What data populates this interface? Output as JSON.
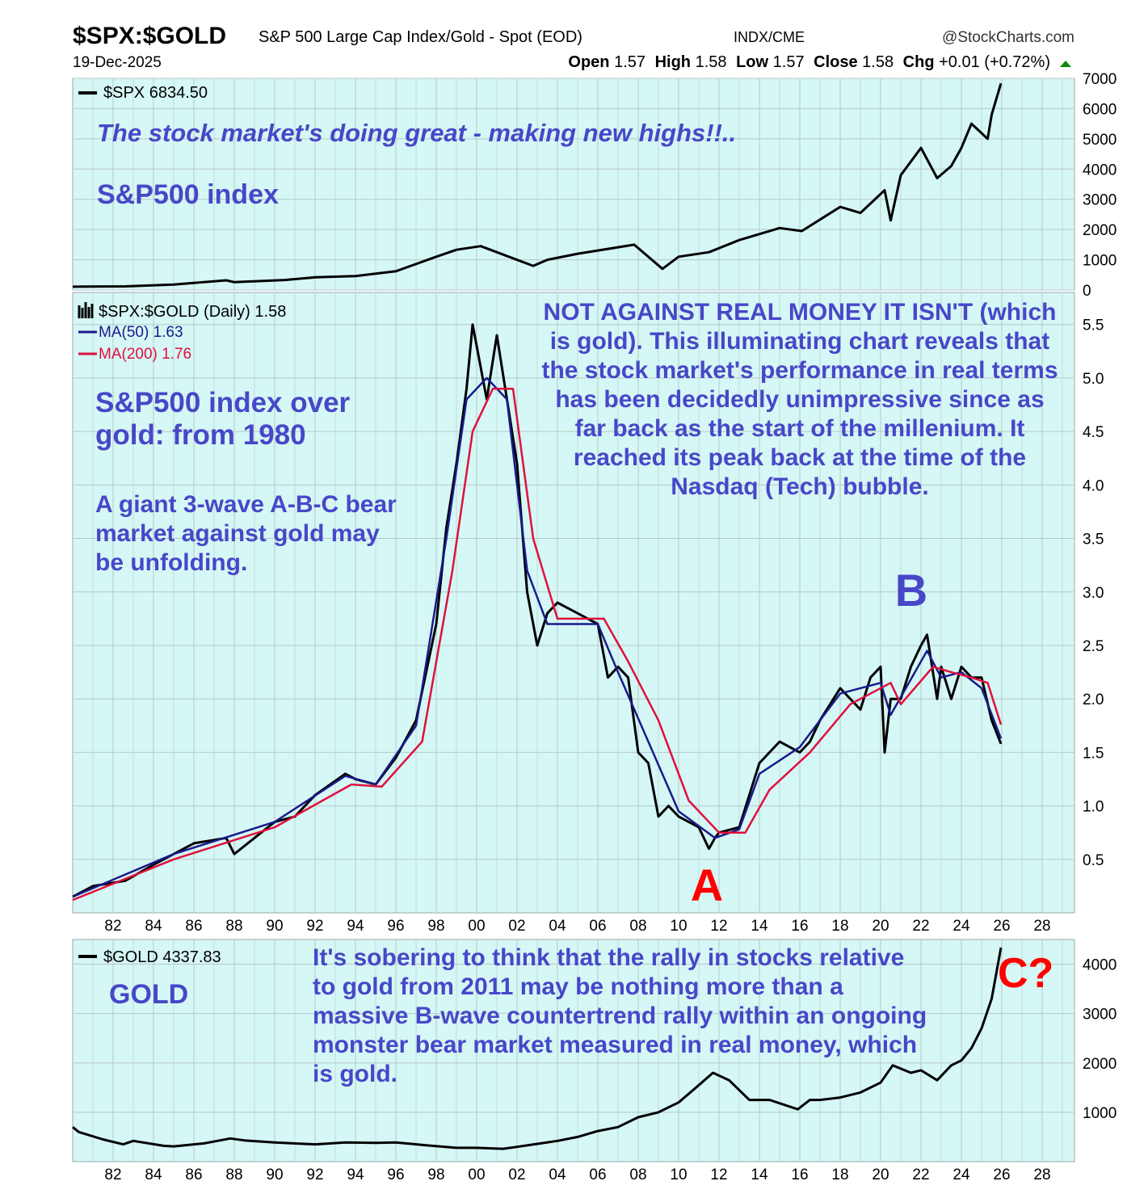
{
  "header": {
    "symbol": "$SPX:$GOLD",
    "description": "S&P 500 Large Cap Index/Gold - Spot (EOD)",
    "exchange": "INDX/CME",
    "source": "@StockCharts.com",
    "date": "19-Dec-2025",
    "open_label": "Open",
    "open": "1.57",
    "high_label": "High",
    "high": "1.58",
    "low_label": "Low",
    "low": "1.57",
    "close_label": "Close",
    "close": "1.58",
    "chg_label": "Chg",
    "chg": "+0.01 (+0.72%)"
  },
  "colors": {
    "panel_bg": "#d5f7f5",
    "grid": "#b8c8c8",
    "annotation_blue": "#4747c8",
    "annotation_red": "#ff0000",
    "price_line": "#000000",
    "ma50": "#1a1a8c",
    "ma200": "#e0103c",
    "up_arrow": "#0a8a0a"
  },
  "chart_data": [
    {
      "type": "line",
      "panel": "top",
      "legend": "$SPX 6834.50",
      "title_annotation": "The stock market's doing great - making new highs!!..",
      "label_annotation": "S&P500 index",
      "ylim": [
        0,
        7000
      ],
      "yticks": [
        0,
        1000,
        2000,
        3000,
        4000,
        5000,
        6000,
        7000
      ],
      "series": [
        {
          "name": "$SPX",
          "x": [
            1980.0,
            1982.6,
            1985.0,
            1987.6,
            1988.0,
            1990.5,
            1992.0,
            1994.0,
            1996.0,
            1998.0,
            1999.0,
            2000.2,
            2001.0,
            2002.8,
            2003.5,
            2005.0,
            2007.8,
            2009.2,
            2010.0,
            2011.5,
            2013.0,
            2015.0,
            2016.1,
            2018.0,
            2019.0,
            2020.2,
            2020.5,
            2021.0,
            2022.0,
            2022.8,
            2023.5,
            2024.0,
            2024.5,
            2025.3,
            2025.5,
            2025.96
          ],
          "y": [
            110,
            120,
            180,
            320,
            260,
            330,
            420,
            460,
            620,
            1100,
            1330,
            1450,
            1250,
            800,
            1000,
            1200,
            1500,
            700,
            1100,
            1250,
            1650,
            2050,
            1950,
            2750,
            2550,
            3300,
            2300,
            3800,
            4700,
            3700,
            4100,
            4700,
            5500,
            5000,
            5800,
            6834
          ]
        }
      ]
    },
    {
      "type": "line",
      "panel": "middle",
      "legend": [
        "$SPX:$GOLD (Daily) 1.58",
        "MA(50) 1.63",
        "MA(200) 1.76"
      ],
      "ylim": [
        0,
        5.8
      ],
      "yticks": [
        0.5,
        1.0,
        1.5,
        2.0,
        2.5,
        3.0,
        3.5,
        4.0,
        4.5,
        5.0,
        5.5
      ],
      "xticks": [
        "82",
        "84",
        "86",
        "88",
        "90",
        "92",
        "94",
        "96",
        "98",
        "00",
        "02",
        "04",
        "06",
        "08",
        "10",
        "12",
        "14",
        "16",
        "18",
        "20",
        "22",
        "24",
        "26",
        "28"
      ],
      "series": [
        {
          "name": "$SPX:$GOLD",
          "x": [
            1980.0,
            1981.0,
            1982.6,
            1984.0,
            1985.0,
            1986.0,
            1987.6,
            1988.0,
            1989.0,
            1990.0,
            1991.0,
            1992.0,
            1993.5,
            1994.0,
            1995.0,
            1996.0,
            1997.0,
            1998.0,
            1998.5,
            1999.0,
            1999.5,
            1999.8,
            2000.0,
            2000.5,
            2001.0,
            2001.5,
            2002.0,
            2002.5,
            2003.0,
            2003.5,
            2004.0,
            2005.0,
            2006.0,
            2006.5,
            2007.0,
            2007.5,
            2008.0,
            2008.5,
            2009.0,
            2009.5,
            2010.0,
            2010.5,
            2011.0,
            2011.5,
            2011.8,
            2012.0,
            2013.0,
            2013.5,
            2014.0,
            2015.0,
            2016.0,
            2016.5,
            2017.0,
            2018.0,
            2019.0,
            2019.5,
            2020.0,
            2020.2,
            2020.5,
            2021.0,
            2021.5,
            2022.0,
            2022.3,
            2022.8,
            2023.0,
            2023.5,
            2024.0,
            2024.5,
            2025.0,
            2025.5,
            2025.96
          ],
          "y": [
            0.15,
            0.25,
            0.3,
            0.45,
            0.55,
            0.65,
            0.7,
            0.55,
            0.7,
            0.85,
            0.9,
            1.1,
            1.3,
            1.25,
            1.2,
            1.45,
            1.8,
            2.7,
            3.6,
            4.2,
            4.9,
            5.5,
            5.3,
            4.8,
            5.4,
            4.8,
            4.2,
            3.0,
            2.5,
            2.8,
            2.9,
            2.8,
            2.7,
            2.2,
            2.3,
            2.2,
            1.5,
            1.4,
            0.9,
            1.0,
            0.9,
            0.85,
            0.8,
            0.6,
            0.7,
            0.75,
            0.8,
            1.1,
            1.4,
            1.6,
            1.5,
            1.6,
            1.8,
            2.1,
            1.9,
            2.2,
            2.3,
            1.5,
            2.0,
            2.0,
            2.3,
            2.5,
            2.6,
            2.0,
            2.3,
            2.0,
            2.3,
            2.2,
            2.2,
            1.8,
            1.58
          ]
        },
        {
          "name": "MA(50)",
          "x": [
            1980.0,
            1985.0,
            1990.0,
            1993.5,
            1995.0,
            1997.0,
            1998.5,
            1999.5,
            2000.5,
            2001.5,
            2002.5,
            2003.5,
            2006.0,
            2007.0,
            2008.5,
            2010.0,
            2011.8,
            2013.0,
            2014.0,
            2016.0,
            2018.0,
            2020.0,
            2020.5,
            2022.3,
            2023.0,
            2024.0,
            2025.0,
            2025.96
          ],
          "y": [
            0.15,
            0.55,
            0.85,
            1.28,
            1.2,
            1.75,
            3.5,
            4.8,
            5.0,
            4.8,
            3.2,
            2.7,
            2.7,
            2.25,
            1.6,
            0.95,
            0.7,
            0.78,
            1.3,
            1.55,
            2.05,
            2.15,
            1.85,
            2.45,
            2.2,
            2.25,
            2.1,
            1.63
          ]
        },
        {
          "name": "MA(200)",
          "x": [
            1980.0,
            1985.0,
            1990.0,
            1993.8,
            1995.3,
            1997.3,
            1998.8,
            1999.8,
            2000.8,
            2001.8,
            2002.8,
            2004.0,
            2006.3,
            2007.5,
            2009.0,
            2010.5,
            2012.0,
            2013.3,
            2014.5,
            2016.5,
            2018.5,
            2020.5,
            2021.0,
            2022.6,
            2023.5,
            2024.5,
            2025.3,
            2025.96
          ],
          "y": [
            0.12,
            0.5,
            0.8,
            1.2,
            1.18,
            1.6,
            3.2,
            4.5,
            4.9,
            4.9,
            3.5,
            2.75,
            2.75,
            2.35,
            1.8,
            1.05,
            0.75,
            0.75,
            1.15,
            1.5,
            1.95,
            2.15,
            1.95,
            2.3,
            2.25,
            2.2,
            2.15,
            1.76
          ]
        }
      ]
    },
    {
      "type": "line",
      "panel": "bottom",
      "legend": "$GOLD 4337.83",
      "label_annotation": "GOLD",
      "ylim": [
        0,
        4500
      ],
      "yticks": [
        1000,
        2000,
        3000,
        4000
      ],
      "xticks": [
        "82",
        "84",
        "86",
        "88",
        "90",
        "92",
        "94",
        "96",
        "98",
        "00",
        "02",
        "04",
        "06",
        "08",
        "10",
        "12",
        "14",
        "16",
        "18",
        "20",
        "22",
        "24",
        "26",
        "28"
      ],
      "series": [
        {
          "name": "$GOLD",
          "x": [
            1980.0,
            1980.3,
            1981.5,
            1982.5,
            1983.0,
            1984.5,
            1985.0,
            1986.5,
            1987.8,
            1988.5,
            1990.0,
            1992.0,
            1993.5,
            1995.0,
            1996.0,
            1997.5,
            1999.0,
            2000.0,
            2001.3,
            2002.0,
            2003.0,
            2004.0,
            2005.0,
            2006.0,
            2007.0,
            2008.0,
            2009.0,
            2010.0,
            2011.0,
            2011.7,
            2012.5,
            2013.5,
            2014.5,
            2015.9,
            2016.5,
            2017.0,
            2018.0,
            2019.0,
            2020.0,
            2020.6,
            2021.5,
            2022.0,
            2022.8,
            2023.5,
            2024.0,
            2024.5,
            2025.0,
            2025.5,
            2025.96
          ],
          "y": [
            700,
            600,
            450,
            350,
            420,
            320,
            310,
            370,
            470,
            430,
            390,
            350,
            390,
            380,
            390,
            330,
            280,
            280,
            260,
            300,
            360,
            420,
            500,
            620,
            700,
            900,
            1000,
            1200,
            1550,
            1800,
            1650,
            1250,
            1250,
            1060,
            1250,
            1250,
            1300,
            1400,
            1600,
            1950,
            1800,
            1850,
            1650,
            1950,
            2050,
            2300,
            2700,
            3300,
            4337
          ]
        }
      ]
    }
  ],
  "annotations": {
    "middle_title": "S&P500 index over gold: from 1980",
    "middle_abc": "A giant 3-wave A-B-C bear market against gold may be unfolding.",
    "middle_right": "NOT AGAINST REAL MONEY IT ISN'T (which is gold). This illuminating chart reveals that the stock market's performance in real terms has been decidedly unimpressive since as far back as the start of the millenium. It reached its peak back at the time of the Nasdaq (Tech) bubble.",
    "wave_a": "A",
    "wave_b": "B",
    "wave_c": "C?",
    "bottom_text": "It's sobering to think that the rally in stocks relative to gold from 2011 may be nothing more than a massive B-wave countertrend rally within an ongoing monster bear market measured in real money, which is gold."
  }
}
